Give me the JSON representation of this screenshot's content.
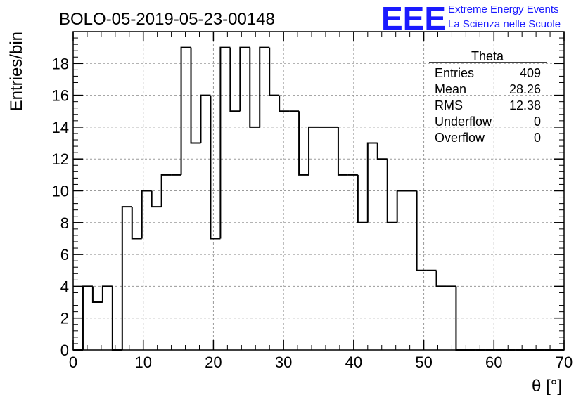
{
  "chart_data": {
    "type": "bar",
    "title": "BOLO-05-2019-05-23-00148",
    "xlabel": "θ [°]",
    "ylabel": "Entries/bin",
    "xlim": [
      0,
      70
    ],
    "ylim": [
      0,
      20
    ],
    "x_ticks": [
      "0",
      "10",
      "20",
      "30",
      "40",
      "50",
      "60",
      "70"
    ],
    "y_ticks": [
      "0",
      "2",
      "4",
      "6",
      "8",
      "10",
      "12",
      "14",
      "16",
      "18"
    ],
    "grid": true,
    "bin_edges": [
      0,
      1.4,
      2.8,
      4.2,
      5.6,
      7,
      8.4,
      9.8,
      11.2,
      12.6,
      14,
      15.4,
      16.8,
      18.2,
      19.6,
      21,
      22.4,
      23.8,
      25.2,
      26.6,
      28,
      29.4,
      30.8,
      32.2,
      33.6,
      35,
      36.4,
      37.8,
      39.2,
      40.6,
      42,
      43.4,
      44.8,
      46.2,
      47.6,
      49,
      50.4,
      51.8,
      53.2,
      54.6,
      56,
      57.4,
      58.8,
      60.2,
      61.6,
      63,
      64.4,
      65.8,
      67.2,
      68.6,
      70
    ],
    "values": [
      0,
      4,
      3,
      4,
      0,
      9,
      7,
      10,
      9,
      11,
      11,
      19,
      13,
      16,
      7,
      19,
      15,
      19,
      14,
      19,
      16,
      15,
      15,
      11,
      14,
      14,
      14,
      11,
      11,
      8,
      13,
      12,
      8,
      10,
      10,
      5,
      5,
      4,
      4,
      0,
      0,
      0,
      0,
      0,
      0,
      0,
      0,
      0,
      0,
      0
    ],
    "stats_box": {
      "title": "Theta",
      "rows": [
        {
          "label": "Entries",
          "value": "409"
        },
        {
          "label": "Mean",
          "value": "28.26"
        },
        {
          "label": "RMS",
          "value": "12.38"
        },
        {
          "label": "Underflow",
          "value": "0"
        },
        {
          "label": "Overflow",
          "value": "0"
        }
      ],
      "placement": "top-right"
    }
  },
  "logo": {
    "text": "EEE",
    "line1": "Extreme Energy Events",
    "line2": "La Scienza nelle Scuole",
    "color": "#1a1aff"
  },
  "colors": {
    "frame": "#000000",
    "grid": "#9a9a9a",
    "histogram": "#000000"
  }
}
